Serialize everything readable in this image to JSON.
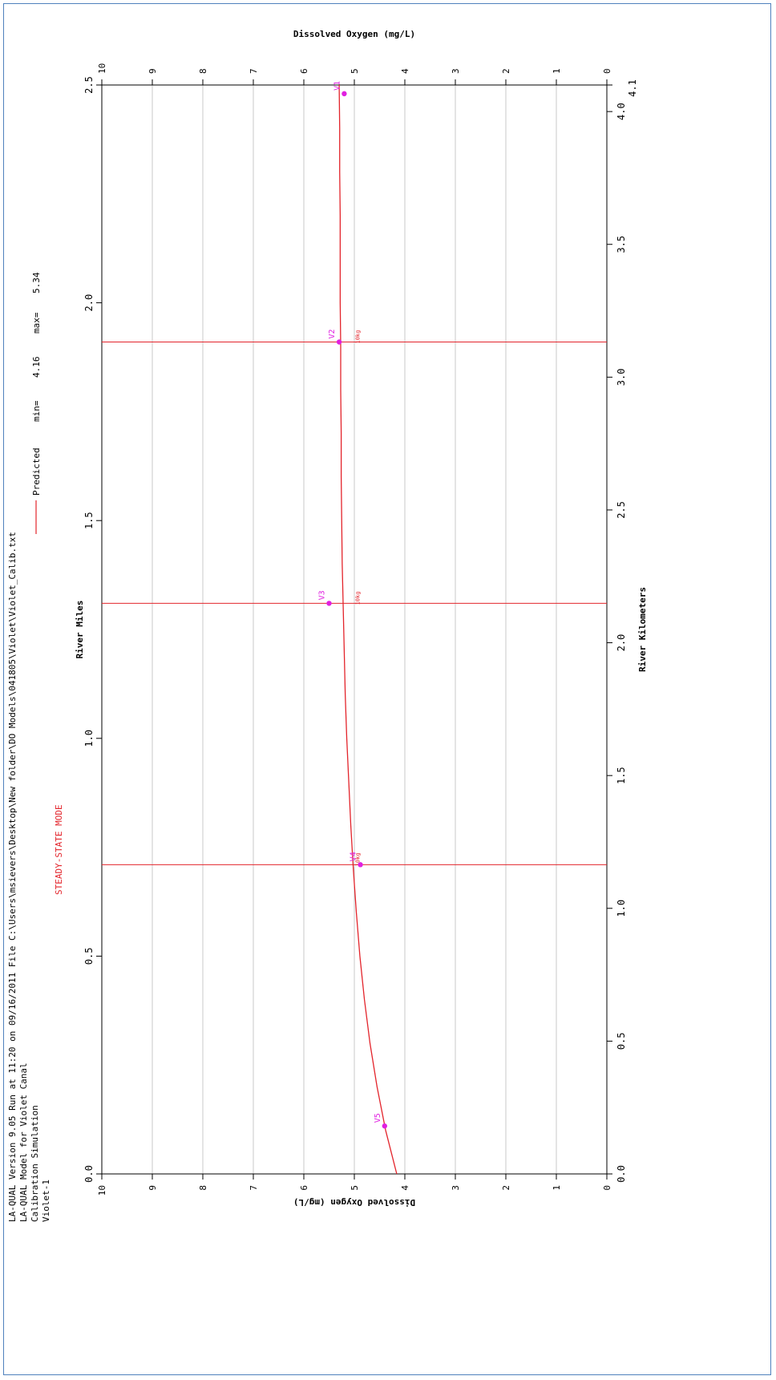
{
  "chart_data": {
    "type": "line",
    "orientation": "rotated-90-ccw",
    "header_lines": [
      "LA-QUAL Version 9.05  Run at 11:20 on 09/16/2011  File C:\\Users\\msievers\\Desktop\\New folder\\DO Models\\041805\\Violet\\Violet_Calib.txt",
      "LA-QUAL Model for Violet Canal",
      "Calibration Simulation",
      "Violet-1"
    ],
    "mode_label": "STEADY-STATE MODE",
    "legend": {
      "line_label": "Predicted",
      "min_label": "min=",
      "min_value": "4.16",
      "max_label": "max=",
      "max_value": "5.34"
    },
    "x_axis_miles": {
      "label": "River Miles",
      "range": [
        0,
        2.5
      ],
      "ticks": [
        "0.0",
        "0.5",
        "1.0",
        "1.5",
        "2.0",
        "2.5"
      ]
    },
    "x_axis_km": {
      "label": "River Kilometers",
      "range": [
        0,
        4.1
      ],
      "ticks": [
        "0.0",
        "0.5",
        "1.0",
        "1.5",
        "2.0",
        "2.5",
        "3.0",
        "3.5",
        "4.0"
      ],
      "end_label": "4.1"
    },
    "y_axis": {
      "label": "Dissolved Oxygen (mg/L)",
      "range": [
        0,
        10
      ],
      "ticks": [
        "0",
        "1",
        "2",
        "3",
        "4",
        "5",
        "6",
        "7",
        "8",
        "9",
        "10"
      ]
    },
    "predicted": {
      "name": "Predicted",
      "x": [
        0.0,
        0.1,
        0.2,
        0.3,
        0.4,
        0.5,
        0.6,
        0.7,
        0.8,
        0.9,
        1.0,
        1.1,
        1.2,
        1.3,
        1.4,
        1.5,
        1.6,
        1.7,
        1.8,
        1.9,
        2.0,
        2.1,
        2.2,
        2.3,
        2.4,
        2.5
      ],
      "values": [
        4.16,
        4.38,
        4.55,
        4.69,
        4.8,
        4.89,
        4.96,
        5.02,
        5.07,
        5.11,
        5.15,
        5.18,
        5.2,
        5.22,
        5.24,
        5.25,
        5.26,
        5.26,
        5.27,
        5.27,
        5.28,
        5.28,
        5.28,
        5.29,
        5.29,
        5.3
      ]
    },
    "stations": [
      {
        "label": "V5",
        "x": 0.11,
        "y": 4.4
      },
      {
        "label": "V4",
        "x": 0.71,
        "y": 4.88,
        "tag": "10kg"
      },
      {
        "label": "V3",
        "x": 1.31,
        "y": 5.5,
        "tag": "10kg"
      },
      {
        "label": "V2",
        "x": 1.91,
        "y": 5.3,
        "tag": "10kg"
      },
      {
        "label": "V1",
        "x": 2.48,
        "y": 5.2
      }
    ],
    "grid": true,
    "colors": {
      "predicted": "#e3242b",
      "stations": "#e020e0",
      "grid": "#c8c8c8",
      "axis": "#000000"
    }
  }
}
